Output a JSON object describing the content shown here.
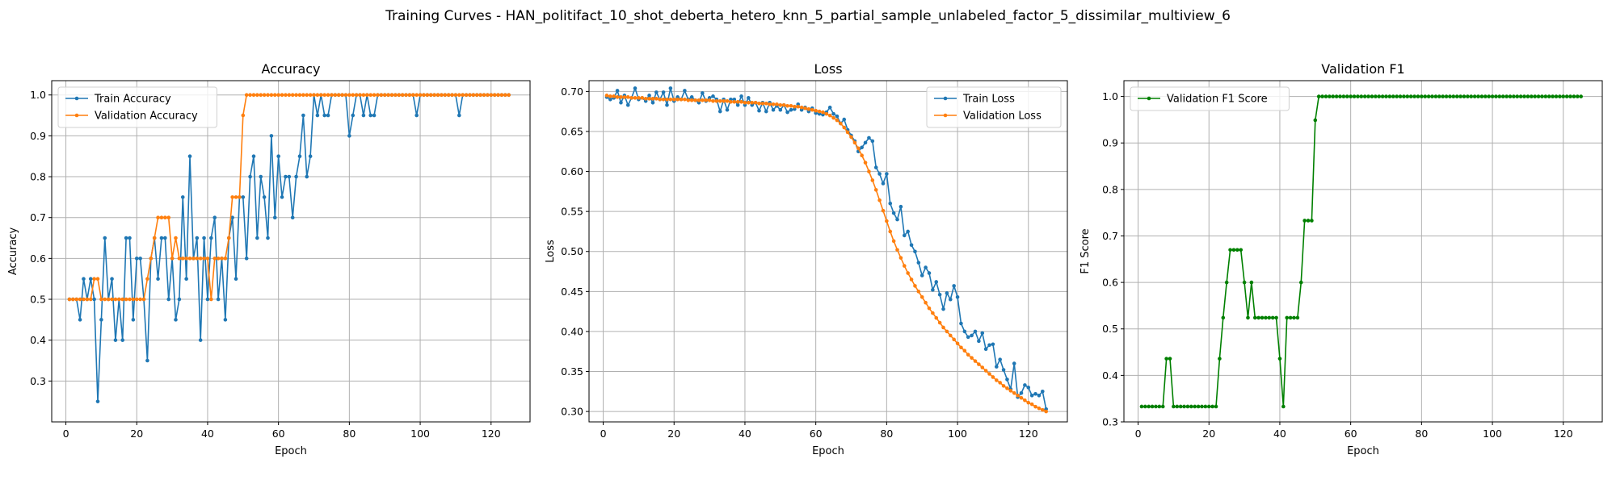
{
  "figure": {
    "title": "Training Curves - HAN_politifact_10_shot_deberta_hetero_knn_5_partial_sample_unlabeled_factor_5_dissimilar_multiview_6"
  },
  "colors": {
    "blue": "#1f77b4",
    "orange": "#ff7f0e",
    "green": "#008000"
  },
  "chart_data": [
    {
      "type": "line",
      "title": "Accuracy",
      "xlabel": "Epoch",
      "ylabel": "Accuracy",
      "xlim": [
        -4,
        131
      ],
      "ylim": [
        0.2,
        1.035
      ],
      "xticks": [
        0,
        20,
        40,
        60,
        80,
        100,
        120
      ],
      "yticks": [
        0.3,
        0.4,
        0.5,
        0.6,
        0.7,
        0.8,
        0.9,
        1.0
      ],
      "grid": true,
      "legend_position": "upper-left",
      "x": [
        1,
        2,
        3,
        4,
        5,
        6,
        7,
        8,
        9,
        10,
        11,
        12,
        13,
        14,
        15,
        16,
        17,
        18,
        19,
        20,
        21,
        22,
        23,
        24,
        25,
        26,
        27,
        28,
        29,
        30,
        31,
        32,
        33,
        34,
        35,
        36,
        37,
        38,
        39,
        40,
        41,
        42,
        43,
        44,
        45,
        46,
        47,
        48,
        49,
        50,
        51,
        52,
        53,
        54,
        55,
        56,
        57,
        58,
        59,
        60,
        61,
        62,
        63,
        64,
        65,
        66,
        67,
        68,
        69,
        70,
        71,
        72,
        73,
        74,
        75,
        76,
        77,
        78,
        79,
        80,
        81,
        82,
        83,
        84,
        85,
        86,
        87,
        88,
        89,
        90,
        91,
        92,
        93,
        94,
        95,
        96,
        97,
        98,
        99,
        100,
        101,
        102,
        103,
        104,
        105,
        106,
        107,
        108,
        109,
        110,
        111,
        112,
        113,
        114,
        115,
        116,
        117,
        118,
        119,
        120,
        121,
        122,
        123,
        124,
        125
      ],
      "series": [
        {
          "name": "Train Accuracy",
          "color": "#1f77b4",
          "values": [
            0.5,
            0.5,
            0.5,
            0.45,
            0.55,
            0.5,
            0.55,
            0.5,
            0.25,
            0.45,
            0.65,
            0.5,
            0.55,
            0.4,
            0.5,
            0.4,
            0.65,
            0.65,
            0.45,
            0.6,
            0.6,
            0.5,
            0.35,
            0.6,
            0.65,
            0.55,
            0.65,
            0.65,
            0.5,
            0.6,
            0.45,
            0.5,
            0.75,
            0.55,
            0.85,
            0.6,
            0.65,
            0.4,
            0.65,
            0.5,
            0.65,
            0.7,
            0.5,
            0.6,
            0.45,
            0.65,
            0.7,
            0.55,
            0.75,
            0.75,
            0.6,
            0.8,
            0.85,
            0.65,
            0.8,
            0.75,
            0.65,
            0.9,
            0.7,
            0.85,
            0.75,
            0.8,
            0.8,
            0.7,
            0.8,
            0.85,
            0.95,
            0.8,
            0.85,
            1.0,
            0.95,
            1.0,
            0.95,
            0.95,
            1.0,
            1.0,
            1.0,
            1.0,
            1.0,
            0.9,
            0.95,
            1.0,
            1.0,
            0.95,
            1.0,
            0.95,
            0.95,
            1.0,
            1.0,
            1.0,
            1.0,
            1.0,
            1.0,
            1.0,
            1.0,
            1.0,
            1.0,
            1.0,
            0.95,
            1.0,
            1.0,
            1.0,
            1.0,
            1.0,
            1.0,
            1.0,
            1.0,
            1.0,
            1.0,
            1.0,
            0.95,
            1.0,
            1.0,
            1.0,
            1.0,
            1.0,
            1.0,
            1.0,
            1.0,
            1.0,
            1.0,
            1.0,
            1.0,
            1.0,
            1.0
          ]
        },
        {
          "name": "Validation Accuracy",
          "color": "#ff7f0e",
          "values": [
            0.5,
            0.5,
            0.5,
            0.5,
            0.5,
            0.5,
            0.5,
            0.55,
            0.55,
            0.5,
            0.5,
            0.5,
            0.5,
            0.5,
            0.5,
            0.5,
            0.5,
            0.5,
            0.5,
            0.5,
            0.5,
            0.5,
            0.55,
            0.6,
            0.65,
            0.7,
            0.7,
            0.7,
            0.7,
            0.6,
            0.65,
            0.6,
            0.6,
            0.6,
            0.6,
            0.6,
            0.6,
            0.6,
            0.6,
            0.6,
            0.5,
            0.6,
            0.6,
            0.6,
            0.6,
            0.65,
            0.75,
            0.75,
            0.75,
            0.95,
            1.0,
            1.0,
            1.0,
            1.0,
            1.0,
            1.0,
            1.0,
            1.0,
            1.0,
            1.0,
            1.0,
            1.0,
            1.0,
            1.0,
            1.0,
            1.0,
            1.0,
            1.0,
            1.0,
            1.0,
            1.0,
            1.0,
            1.0,
            1.0,
            1.0,
            1.0,
            1.0,
            1.0,
            1.0,
            1.0,
            1.0,
            1.0,
            1.0,
            1.0,
            1.0,
            1.0,
            1.0,
            1.0,
            1.0,
            1.0,
            1.0,
            1.0,
            1.0,
            1.0,
            1.0,
            1.0,
            1.0,
            1.0,
            1.0,
            1.0,
            1.0,
            1.0,
            1.0,
            1.0,
            1.0,
            1.0,
            1.0,
            1.0,
            1.0,
            1.0,
            1.0,
            1.0,
            1.0,
            1.0,
            1.0,
            1.0,
            1.0,
            1.0,
            1.0,
            1.0,
            1.0,
            1.0,
            1.0,
            1.0,
            1.0
          ]
        }
      ]
    },
    {
      "type": "line",
      "title": "Loss",
      "xlabel": "Epoch",
      "ylabel": "Loss",
      "xlim": [
        -4,
        131
      ],
      "ylim": [
        0.287,
        0.7135
      ],
      "xticks": [
        0,
        20,
        40,
        60,
        80,
        100,
        120
      ],
      "yticks": [
        0.3,
        0.35,
        0.4,
        0.45,
        0.5,
        0.55,
        0.6,
        0.65,
        0.7
      ],
      "grid": true,
      "legend_position": "upper-right",
      "x": [
        1,
        2,
        3,
        4,
        5,
        6,
        7,
        8,
        9,
        10,
        11,
        12,
        13,
        14,
        15,
        16,
        17,
        18,
        19,
        20,
        21,
        22,
        23,
        24,
        25,
        26,
        27,
        28,
        29,
        30,
        31,
        32,
        33,
        34,
        35,
        36,
        37,
        38,
        39,
        40,
        41,
        42,
        43,
        44,
        45,
        46,
        47,
        48,
        49,
        50,
        51,
        52,
        53,
        54,
        55,
        56,
        57,
        58,
        59,
        60,
        61,
        62,
        63,
        64,
        65,
        66,
        67,
        68,
        69,
        70,
        71,
        72,
        73,
        74,
        75,
        76,
        77,
        78,
        79,
        80,
        81,
        82,
        83,
        84,
        85,
        86,
        87,
        88,
        89,
        90,
        91,
        92,
        93,
        94,
        95,
        96,
        97,
        98,
        99,
        100,
        101,
        102,
        103,
        104,
        105,
        106,
        107,
        108,
        109,
        110,
        111,
        112,
        113,
        114,
        115,
        116,
        117,
        118,
        119,
        120,
        121,
        122,
        123,
        124,
        125
      ],
      "series": [
        {
          "name": "Train Loss",
          "color": "#1f77b4",
          "values": [
            0.693,
            0.69,
            0.692,
            0.701,
            0.686,
            0.695,
            0.683,
            0.692,
            0.704,
            0.69,
            0.692,
            0.688,
            0.695,
            0.686,
            0.699,
            0.69,
            0.699,
            0.683,
            0.704,
            0.688,
            0.693,
            0.69,
            0.701,
            0.69,
            0.693,
            0.689,
            0.686,
            0.698,
            0.688,
            0.692,
            0.694,
            0.69,
            0.675,
            0.69,
            0.677,
            0.69,
            0.69,
            0.683,
            0.694,
            0.683,
            0.692,
            0.683,
            0.686,
            0.676,
            0.686,
            0.675,
            0.686,
            0.677,
            0.682,
            0.677,
            0.683,
            0.674,
            0.677,
            0.678,
            0.684,
            0.677,
            0.68,
            0.675,
            0.679,
            0.673,
            0.672,
            0.671,
            0.674,
            0.68,
            0.672,
            0.669,
            0.66,
            0.665,
            0.652,
            0.645,
            0.638,
            0.625,
            0.63,
            0.636,
            0.642,
            0.638,
            0.605,
            0.597,
            0.585,
            0.597,
            0.56,
            0.548,
            0.54,
            0.556,
            0.52,
            0.525,
            0.508,
            0.5,
            0.486,
            0.47,
            0.48,
            0.473,
            0.452,
            0.462,
            0.446,
            0.428,
            0.448,
            0.44,
            0.457,
            0.443,
            0.41,
            0.4,
            0.393,
            0.395,
            0.4,
            0.388,
            0.398,
            0.378,
            0.383,
            0.384,
            0.356,
            0.365,
            0.352,
            0.34,
            0.328,
            0.36,
            0.318,
            0.323,
            0.333,
            0.33,
            0.32,
            0.322,
            0.32,
            0.325,
            0.303
          ]
        },
        {
          "name": "Validation Loss",
          "color": "#ff7f0e",
          "values": [
            0.695,
            0.694,
            0.694,
            0.693,
            0.693,
            0.693,
            0.693,
            0.692,
            0.692,
            0.692,
            0.692,
            0.691,
            0.691,
            0.691,
            0.691,
            0.69,
            0.69,
            0.69,
            0.69,
            0.69,
            0.69,
            0.69,
            0.69,
            0.689,
            0.689,
            0.689,
            0.689,
            0.689,
            0.689,
            0.689,
            0.688,
            0.688,
            0.688,
            0.688,
            0.688,
            0.687,
            0.687,
            0.687,
            0.687,
            0.686,
            0.686,
            0.686,
            0.686,
            0.685,
            0.685,
            0.685,
            0.684,
            0.684,
            0.684,
            0.683,
            0.683,
            0.682,
            0.682,
            0.681,
            0.681,
            0.68,
            0.679,
            0.678,
            0.677,
            0.676,
            0.675,
            0.674,
            0.672,
            0.67,
            0.667,
            0.664,
            0.66,
            0.655,
            0.649,
            0.643,
            0.636,
            0.629,
            0.62,
            0.611,
            0.6,
            0.589,
            0.577,
            0.564,
            0.551,
            0.538,
            0.525,
            0.513,
            0.502,
            0.492,
            0.482,
            0.473,
            0.465,
            0.457,
            0.45,
            0.443,
            0.436,
            0.429,
            0.423,
            0.417,
            0.411,
            0.405,
            0.4,
            0.395,
            0.39,
            0.385,
            0.38,
            0.376,
            0.371,
            0.367,
            0.363,
            0.359,
            0.355,
            0.351,
            0.347,
            0.343,
            0.339,
            0.336,
            0.332,
            0.329,
            0.326,
            0.323,
            0.32,
            0.317,
            0.314,
            0.311,
            0.309,
            0.306,
            0.304,
            0.302,
            0.3
          ]
        }
      ]
    },
    {
      "type": "line",
      "title": "Validation F1",
      "xlabel": "Epoch",
      "ylabel": "F1 Score",
      "xlim": [
        -4,
        131
      ],
      "ylim": [
        0.3,
        1.034
      ],
      "xticks": [
        0,
        20,
        40,
        60,
        80,
        100,
        120
      ],
      "yticks": [
        0.3,
        0.4,
        0.5,
        0.6,
        0.7,
        0.8,
        0.9,
        1.0
      ],
      "grid": true,
      "legend_position": "upper-left",
      "x": [
        1,
        2,
        3,
        4,
        5,
        6,
        7,
        8,
        9,
        10,
        11,
        12,
        13,
        14,
        15,
        16,
        17,
        18,
        19,
        20,
        21,
        22,
        23,
        24,
        25,
        26,
        27,
        28,
        29,
        30,
        31,
        32,
        33,
        34,
        35,
        36,
        37,
        38,
        39,
        40,
        41,
        42,
        43,
        44,
        45,
        46,
        47,
        48,
        49,
        50,
        51,
        52,
        53,
        54,
        55,
        56,
        57,
        58,
        59,
        60,
        61,
        62,
        63,
        64,
        65,
        66,
        67,
        68,
        69,
        70,
        71,
        72,
        73,
        74,
        75,
        76,
        77,
        78,
        79,
        80,
        81,
        82,
        83,
        84,
        85,
        86,
        87,
        88,
        89,
        90,
        91,
        92,
        93,
        94,
        95,
        96,
        97,
        98,
        99,
        100,
        101,
        102,
        103,
        104,
        105,
        106,
        107,
        108,
        109,
        110,
        111,
        112,
        113,
        114,
        115,
        116,
        117,
        118,
        119,
        120,
        121,
        122,
        123,
        124,
        125
      ],
      "series": [
        {
          "name": "Validation F1 Score",
          "color": "#008000",
          "values": [
            0.333,
            0.333,
            0.333,
            0.333,
            0.333,
            0.333,
            0.333,
            0.436,
            0.436,
            0.333,
            0.333,
            0.333,
            0.333,
            0.333,
            0.333,
            0.333,
            0.333,
            0.333,
            0.333,
            0.333,
            0.333,
            0.333,
            0.436,
            0.524,
            0.6,
            0.67,
            0.67,
            0.67,
            0.67,
            0.6,
            0.524,
            0.6,
            0.524,
            0.524,
            0.524,
            0.524,
            0.524,
            0.524,
            0.524,
            0.436,
            0.333,
            0.524,
            0.524,
            0.524,
            0.524,
            0.6,
            0.733,
            0.733,
            0.733,
            0.949,
            1.0,
            1.0,
            1.0,
            1.0,
            1.0,
            1.0,
            1.0,
            1.0,
            1.0,
            1.0,
            1.0,
            1.0,
            1.0,
            1.0,
            1.0,
            1.0,
            1.0,
            1.0,
            1.0,
            1.0,
            1.0,
            1.0,
            1.0,
            1.0,
            1.0,
            1.0,
            1.0,
            1.0,
            1.0,
            1.0,
            1.0,
            1.0,
            1.0,
            1.0,
            1.0,
            1.0,
            1.0,
            1.0,
            1.0,
            1.0,
            1.0,
            1.0,
            1.0,
            1.0,
            1.0,
            1.0,
            1.0,
            1.0,
            1.0,
            1.0,
            1.0,
            1.0,
            1.0,
            1.0,
            1.0,
            1.0,
            1.0,
            1.0,
            1.0,
            1.0,
            1.0,
            1.0,
            1.0,
            1.0,
            1.0,
            1.0,
            1.0,
            1.0,
            1.0,
            1.0,
            1.0,
            1.0,
            1.0,
            1.0,
            1.0
          ]
        }
      ]
    }
  ]
}
